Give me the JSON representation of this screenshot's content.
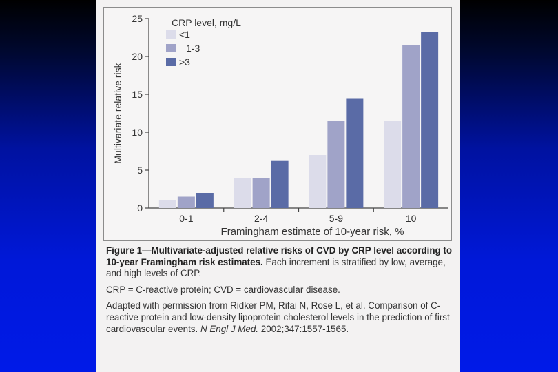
{
  "chart_data": {
    "type": "bar",
    "title": "",
    "xlabel": "Framingham estimate of 10-year risk, %",
    "ylabel": "Multivariate relative risk",
    "ylim": [
      0,
      25
    ],
    "yticks": [
      "0",
      "5",
      "10",
      "15",
      "20",
      "25"
    ],
    "grid": false,
    "legend_title": "CRP level, mg/L",
    "legend_position": "top-left",
    "categories": [
      "0-1",
      "2-4",
      "5-9",
      "10"
    ],
    "series": [
      {
        "name": "<1",
        "color": "#dcdcea",
        "values": [
          1.0,
          4.0,
          7.0,
          11.5
        ]
      },
      {
        "name": "1-3",
        "color": "#a0a3c8",
        "values": [
          1.5,
          4.0,
          11.5,
          21.5
        ]
      },
      {
        "name": ">3",
        "color": "#5a6ba6",
        "values": [
          2.0,
          6.3,
          14.5,
          23.2
        ]
      }
    ]
  },
  "caption": {
    "figure_label": "Figure 1—Multivariate-adjusted relative risks of CVD by CRP level according to 10-year Framingham risk estimates.",
    "figure_text": " Each increment is stratified by low, average, and high levels of CRP.",
    "abbreviations": "CRP = C-reactive protein; CVD = cardiovascular disease.",
    "source_intro": "Adapted with permission from Ridker PM, Rifai N, Rose L, et al. Comparison of C-reactive protein and low-density lipoprotein cholesterol levels in the prediction of first cardiovascular events. ",
    "source_journal": "N Engl J Med.",
    "source_citation": " 2002;347:1557-1565."
  },
  "colors": {
    "background_top": "#000000",
    "background_bottom": "#001ae8",
    "card": "#f3f2f2"
  }
}
